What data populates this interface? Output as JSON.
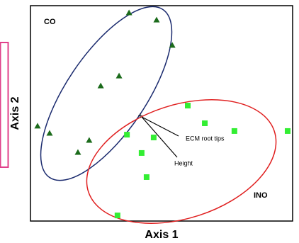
{
  "chart_data": {
    "type": "scatter",
    "xlabel": "Axis 1",
    "ylabel": "Axis 2",
    "xlim": [
      0,
      100
    ],
    "ylim": [
      0,
      100
    ],
    "series": [
      {
        "name": "CO",
        "color": "#1b6b1b",
        "marker": "triangle",
        "x": [
          37.6,
          48.1,
          54.1,
          33.8,
          26.8,
          2.7,
          7.3,
          22.4,
          18.1
        ],
        "values": [
          96.7,
          93.4,
          81.6,
          67.4,
          62.8,
          44.1,
          40.8,
          37.5,
          31.9
        ]
      },
      {
        "name": "INO",
        "color": "#33ee33",
        "marker": "square",
        "x": [
          60,
          66.5,
          77.8,
          98.1,
          36.8,
          47,
          42.4,
          44.3,
          33.2
        ],
        "values": [
          53.6,
          45.4,
          41.8,
          41.8,
          40.1,
          38.8,
          31.6,
          20.4,
          2.6
        ]
      }
    ],
    "annotations": [
      "ECM root tips",
      "Height"
    ]
  }
}
